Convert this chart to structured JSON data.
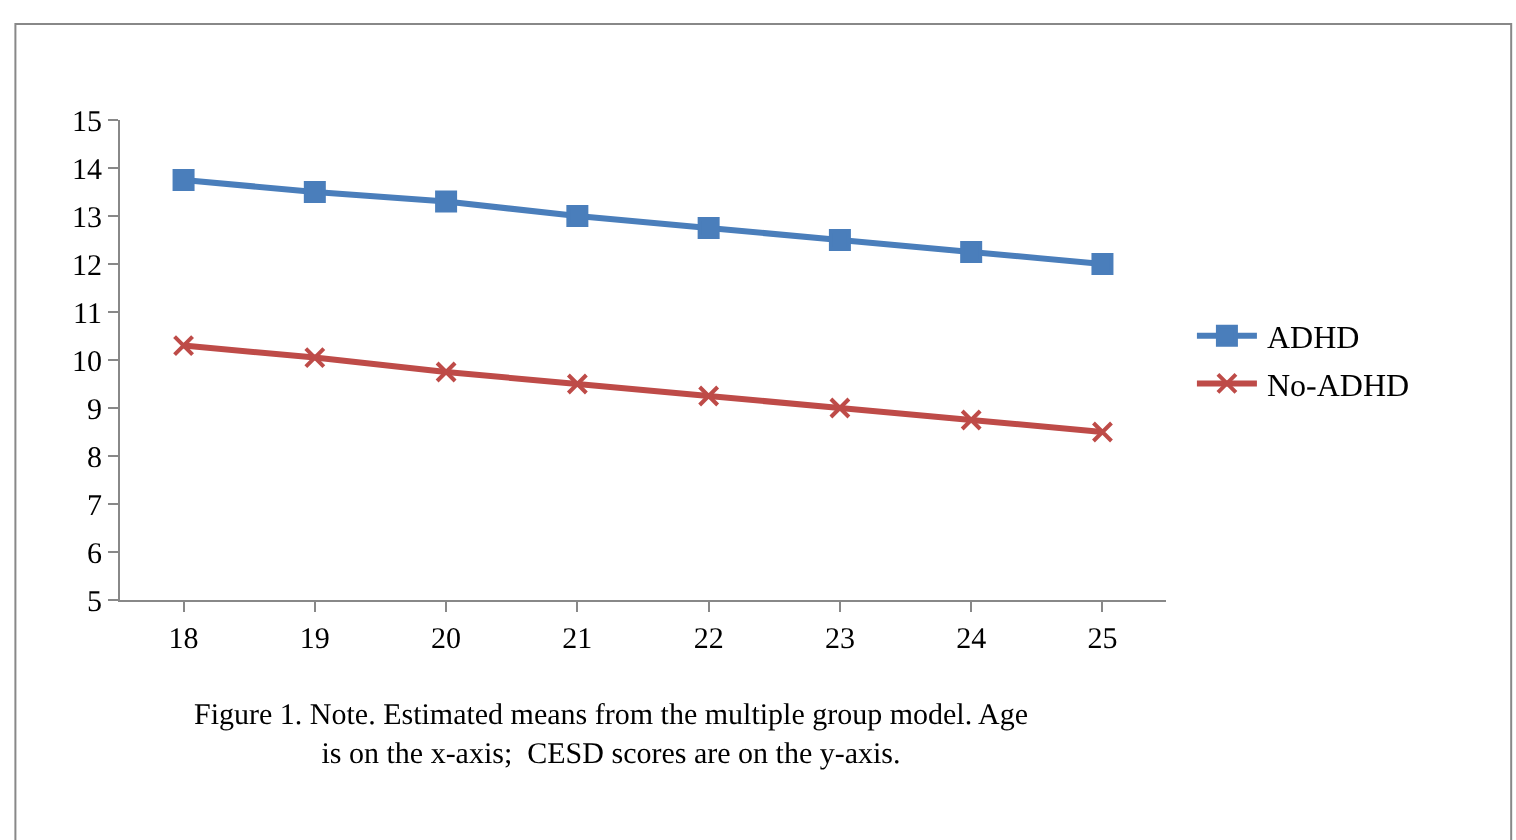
{
  "chart_data": {
    "type": "line",
    "categories": [
      "18",
      "19",
      "20",
      "21",
      "22",
      "23",
      "24",
      "25"
    ],
    "series": [
      {
        "name": "ADHD",
        "color": "#4a7ebb",
        "marker": "square",
        "values": [
          13.75,
          13.5,
          13.3,
          13.0,
          12.75,
          12.5,
          12.25,
          12.0
        ]
      },
      {
        "name": "No-ADHD",
        "color": "#be4b48",
        "marker": "cross",
        "values": [
          10.3,
          10.05,
          9.75,
          9.5,
          9.25,
          9.0,
          8.75,
          8.5
        ]
      }
    ],
    "ylim": [
      5,
      15
    ],
    "yticks": [
      5,
      6,
      7,
      8,
      9,
      10,
      11,
      12,
      13,
      14,
      15
    ],
    "legend": "right",
    "annotations": [
      "Figure 1. Note. Estimated means from the multiple group model. Age is on the x-axis;  CESD scores are on the y-axis."
    ]
  }
}
